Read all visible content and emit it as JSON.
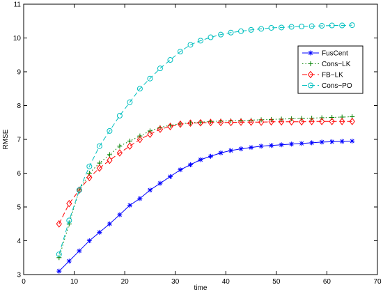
{
  "chart_data": {
    "type": "line",
    "xlabel": "time",
    "ylabel": "RMSE",
    "xlim": [
      0,
      70
    ],
    "ylim": [
      3,
      11
    ],
    "xticks": [
      0,
      10,
      20,
      30,
      40,
      50,
      60,
      70
    ],
    "yticks": [
      3,
      4,
      5,
      6,
      7,
      8,
      9,
      10,
      11
    ],
    "grid": false,
    "legend_position": "top-right",
    "x": [
      7,
      9,
      11,
      13,
      15,
      17,
      19,
      21,
      23,
      25,
      27,
      29,
      31,
      33,
      35,
      37,
      39,
      41,
      43,
      45,
      47,
      49,
      51,
      53,
      55,
      57,
      59,
      61,
      63,
      65
    ],
    "series": [
      {
        "name": "FusCent",
        "color": "#0000ff",
        "dash": "solid",
        "marker": "asterisk",
        "values": [
          3.1,
          3.4,
          3.7,
          4.0,
          4.25,
          4.5,
          4.77,
          5.05,
          5.25,
          5.5,
          5.7,
          5.9,
          6.1,
          6.25,
          6.4,
          6.5,
          6.6,
          6.67,
          6.72,
          6.76,
          6.8,
          6.82,
          6.84,
          6.86,
          6.88,
          6.9,
          6.92,
          6.93,
          6.94,
          6.95
        ]
      },
      {
        "name": "Cons−LK",
        "color": "#008000",
        "dash": "dotted",
        "marker": "plus",
        "values": [
          3.5,
          4.5,
          5.5,
          6.0,
          6.3,
          6.55,
          6.8,
          6.95,
          7.1,
          7.25,
          7.35,
          7.42,
          7.46,
          7.49,
          7.51,
          7.53,
          7.54,
          7.55,
          7.56,
          7.57,
          7.58,
          7.59,
          7.6,
          7.61,
          7.62,
          7.63,
          7.64,
          7.65,
          7.66,
          7.67
        ]
      },
      {
        "name": "FB−LK",
        "color": "#ff0000",
        "dash": "dashed",
        "marker": "diamond",
        "values": [
          4.5,
          5.1,
          5.5,
          5.87,
          6.15,
          6.38,
          6.6,
          6.8,
          7.0,
          7.15,
          7.3,
          7.38,
          7.45,
          7.48,
          7.49,
          7.5,
          7.5,
          7.5,
          7.51,
          7.51,
          7.51,
          7.52,
          7.52,
          7.52,
          7.52,
          7.53,
          7.53,
          7.53,
          7.53,
          7.53
        ]
      },
      {
        "name": "Cons−PO",
        "color": "#00bfbf",
        "dash": "dashed",
        "marker": "circle",
        "values": [
          3.6,
          4.6,
          5.5,
          6.2,
          6.8,
          7.25,
          7.7,
          8.1,
          8.5,
          8.8,
          9.1,
          9.35,
          9.6,
          9.8,
          9.92,
          10.02,
          10.1,
          10.16,
          10.2,
          10.24,
          10.27,
          10.3,
          10.31,
          10.33,
          10.34,
          10.35,
          10.36,
          10.37,
          10.37,
          10.38
        ]
      }
    ]
  }
}
